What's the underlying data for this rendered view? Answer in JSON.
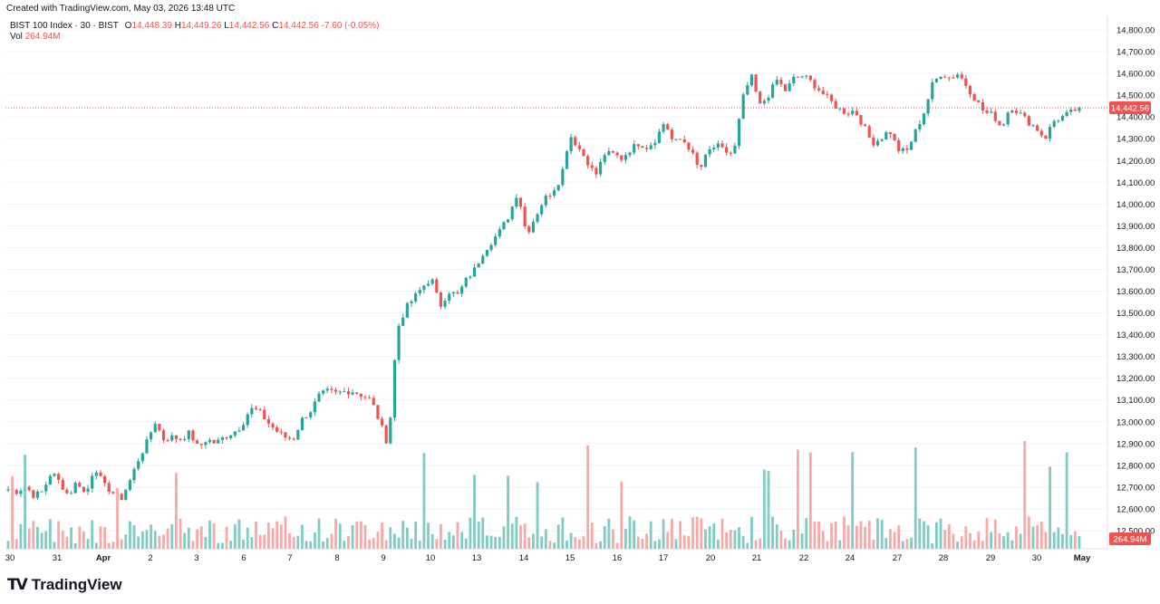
{
  "header": {
    "created_text": "Created with TradingView.com, May 03, 2026 13:48 UTC"
  },
  "legend": {
    "symbol": "BIST 100 Index · 30 · BIST",
    "o_key": "O",
    "o_val": "14,448.39",
    "h_key": "H",
    "h_val": "14,449.26",
    "l_key": "L",
    "l_val": "14,442.56",
    "c_key": "C",
    "c_val": "14,442.56",
    "change": "-7.60 (-0.05%)",
    "vol_key": "Vol",
    "vol_val": "264.94M"
  },
  "branding": {
    "logo_mark": "TV",
    "logo_text": "TradingView"
  },
  "colors": {
    "up": "#26a69a",
    "down": "#ef5350",
    "vol_up": "#80cbc4",
    "vol_down": "#f7a9a7",
    "grid": "#f0f3fa",
    "axis_text": "#131722",
    "price_line": "#ef5350"
  },
  "chart_data": {
    "type": "candlestick",
    "title": "BIST 100 Index · 30 · BIST",
    "y_ticks": [
      "14,800.00",
      "14,700.00",
      "14,600.00",
      "14,500.00",
      "14,400.00",
      "14,300.00",
      "14,200.00",
      "14,100.00",
      "14,000.00",
      "13,900.00",
      "13,800.00",
      "13,700.00",
      "13,600.00",
      "13,500.00",
      "13,400.00",
      "13,300.00",
      "13,200.00",
      "13,100.00",
      "13,000.00",
      "12,900.00",
      "12,800.00",
      "12,700.00",
      "12,600.00",
      "12,500.00"
    ],
    "ylim": [
      12470,
      14850
    ],
    "x_ticks": [
      "30",
      "31",
      "Apr",
      "2",
      "3",
      "6",
      "7",
      "8",
      "9",
      "10",
      "13",
      "14",
      "15",
      "16",
      "17",
      "20",
      "21",
      "22",
      "24",
      "27",
      "28",
      "29",
      "30",
      "May"
    ],
    "last_price": 14442.56,
    "last_price_label": "14,442.56",
    "last_volume_label": "264.94M",
    "session_closes": [
      [
        12690,
        12680,
        12705,
        12660,
        12680
      ],
      [
        12770,
        12720,
        12660,
        12730,
        12660
      ],
      [
        12800,
        12710,
        12680,
        12640,
        12720
      ],
      [
        12820,
        12900,
        13000,
        12920,
        12930
      ],
      [
        12920,
        12950,
        12880,
        12920,
        12900
      ],
      [
        12930,
        12950,
        12980,
        13060,
        13050
      ],
      [
        13000,
        12960,
        12930,
        12920,
        13010
      ],
      [
        13050,
        13120,
        13140,
        13130,
        13140
      ],
      [
        13140,
        13120,
        13100,
        13000,
        12890
      ],
      [
        13420,
        13520,
        13570,
        13620,
        13660
      ],
      [
        13530,
        13600,
        13580,
        13650,
        13700
      ],
      [
        13780,
        13830,
        13880,
        13950,
        14060
      ],
      [
        13860,
        13940,
        14020,
        14060,
        14120
      ],
      [
        14320,
        14260,
        14200,
        14130,
        14230
      ],
      [
        14230,
        14210,
        14250,
        14280,
        14260
      ],
      [
        14300,
        14380,
        14280,
        14300,
        14250
      ],
      [
        14150,
        14240,
        14270,
        14240,
        14230
      ],
      [
        14480,
        14590,
        14450,
        14500,
        14570
      ],
      [
        14520,
        14580,
        14590,
        14560,
        14520
      ],
      [
        14480,
        14440,
        14420,
        14430,
        14360
      ],
      [
        14280,
        14300,
        14340,
        14250,
        14240
      ],
      [
        14330,
        14420,
        14550,
        14600,
        14580
      ],
      [
        14600,
        14540,
        14480,
        14420,
        14410
      ],
      [
        14350,
        14450,
        14420,
        14380,
        14350
      ],
      [
        14300,
        14380,
        14400,
        14420,
        14442.56
      ]
    ]
  }
}
